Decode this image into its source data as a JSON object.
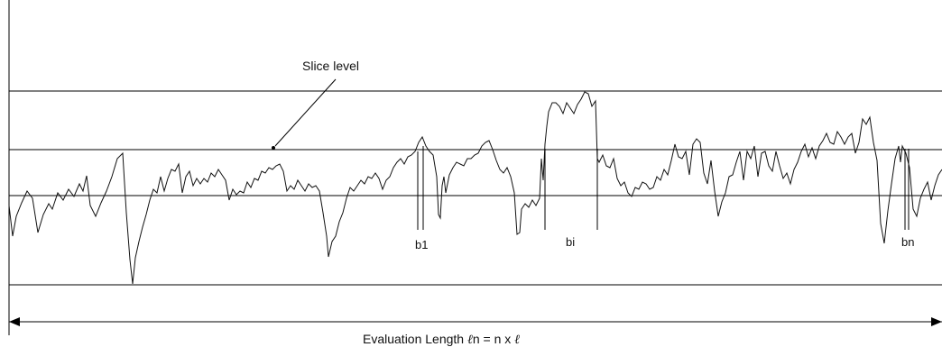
{
  "labels": {
    "slice_level": "Slice level",
    "b1": "b1",
    "bi": "bi",
    "bn": "bn"
  },
  "caption": {
    "prefix": "Evaluation Length ",
    "ell_symbol": "ℓ",
    "middle": "n = n x ",
    "ell_symbol_2": "ℓ"
  },
  "colors": {
    "line": "#000000",
    "profile": "#111111",
    "text": "#111111"
  }
}
